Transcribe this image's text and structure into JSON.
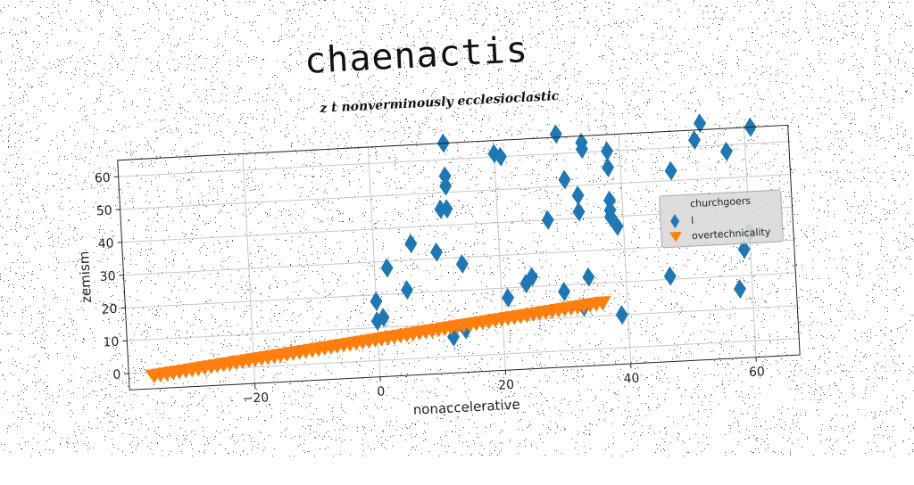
{
  "title": "chaenactis",
  "subtitle": "z t nonverminously ecclesioclastic",
  "chart_data": {
    "type": "scatter",
    "xlabel": "nonaccelerative",
    "ylabel": "zemism",
    "xlim": [
      -40,
      67
    ],
    "ylim": [
      -5,
      65
    ],
    "xticks": [
      -20,
      0,
      20,
      40,
      60
    ],
    "yticks": [
      0,
      10,
      20,
      30,
      40,
      50,
      60
    ],
    "xtick_labels": [
      "−20",
      "0",
      "20",
      "40",
      "60"
    ],
    "ytick_labels": [
      "0",
      "10",
      "20",
      "30",
      "40",
      "50",
      "60"
    ],
    "grid": true,
    "legend": {
      "title": "churchgoers",
      "placement": "right"
    },
    "series": [
      {
        "name": "l",
        "marker": "diamond",
        "color": "#1f77b4",
        "points": [
          [
            0,
            18
          ],
          [
            0,
            12
          ],
          [
            1,
            13
          ],
          [
            2,
            28
          ],
          [
            5,
            21
          ],
          [
            6,
            35
          ],
          [
            10,
            32
          ],
          [
            11,
            45
          ],
          [
            12,
            45
          ],
          [
            12,
            55
          ],
          [
            12,
            52
          ],
          [
            12,
            65
          ],
          [
            14,
            28
          ],
          [
            12,
            6
          ],
          [
            14,
            8
          ],
          [
            20,
            61
          ],
          [
            21,
            60
          ],
          [
            21,
            17
          ],
          [
            24,
            21
          ],
          [
            25,
            23
          ],
          [
            28,
            40
          ],
          [
            30,
            18
          ],
          [
            30,
            66
          ],
          [
            31,
            52
          ],
          [
            33,
            13
          ],
          [
            33,
            42
          ],
          [
            33,
            47
          ],
          [
            34,
            61
          ],
          [
            34,
            63
          ],
          [
            34,
            22
          ],
          [
            38,
            60
          ],
          [
            38,
            55
          ],
          [
            38,
            45
          ],
          [
            38,
            42
          ],
          [
            38,
            40
          ],
          [
            39,
            37
          ],
          [
            39,
            10
          ],
          [
            47,
            21
          ],
          [
            48,
            53
          ],
          [
            52,
            62
          ],
          [
            53,
            67
          ],
          [
            57,
            58
          ],
          [
            58,
            16
          ],
          [
            59,
            28
          ],
          [
            60,
            33
          ],
          [
            61,
            65
          ]
        ]
      },
      {
        "name": "overtechnicality",
        "marker": "triangle-down",
        "color": "#ff7f0e",
        "x_start": -36,
        "x_end": 36,
        "y_start": -1,
        "y_end": 14,
        "count": 72
      }
    ]
  }
}
